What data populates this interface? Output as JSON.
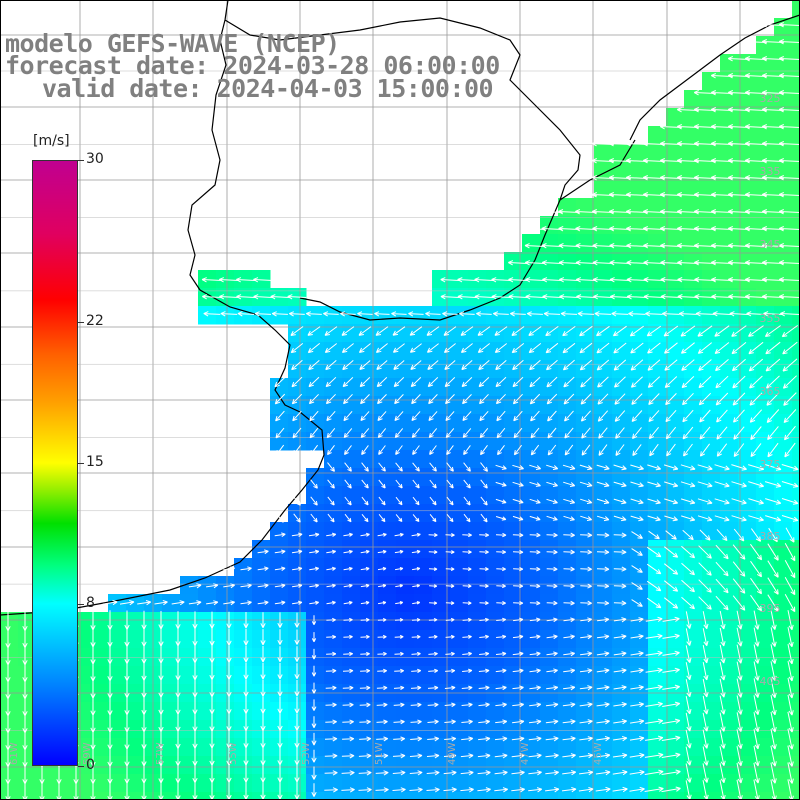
{
  "title": {
    "model": "modelo GEFS-WAVE (NCEP)",
    "forecast_date": "forecast date: 2024-03-28 06:00:00",
    "valid_date": "valid date: 2024-04-03 15:00:00"
  },
  "colorbar": {
    "unit": "[m/s]",
    "ticks": [
      "30",
      "22",
      "15",
      "8",
      "0"
    ],
    "tick_values": [
      30,
      22,
      15,
      8,
      0
    ],
    "range": [
      0,
      30
    ],
    "colors": [
      "#0000ff",
      "#0080ff",
      "#00ffff",
      "#00ff80",
      "#00e000",
      "#ffff00",
      "#ff6000",
      "#ff0000",
      "#c00090"
    ]
  },
  "map": {
    "land_color": "#ffffff",
    "coastline_color": "#000000",
    "grid_color": "#999999",
    "arrow_color": "#ffffff",
    "lat_labels": [
      "325",
      "335",
      "345",
      "355",
      "365",
      "375",
      "385",
      "395",
      "405"
    ],
    "lon_labels": [
      "61W",
      "59W",
      "57W",
      "55W",
      "53W",
      "51W",
      "49W",
      "47W",
      "45W"
    ]
  }
}
